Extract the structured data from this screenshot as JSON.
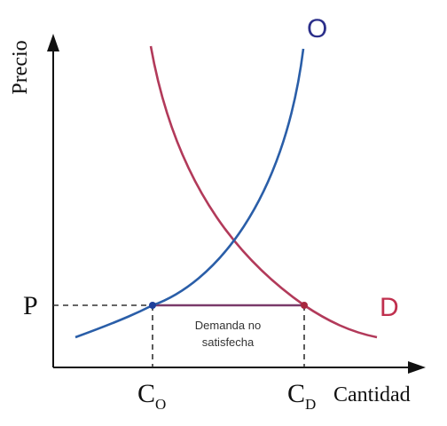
{
  "axes": {
    "y_label": "Precio",
    "x_label": "Cantidad"
  },
  "curves": {
    "supply": {
      "label": "O",
      "color": "#2a5ea8"
    },
    "demand": {
      "label": "D",
      "color": "#b23a5a"
    }
  },
  "markers": {
    "price_label": "P",
    "q_supply_main": "C",
    "q_supply_sub": "O",
    "q_demand_main": "C",
    "q_demand_sub": "D"
  },
  "annotation": {
    "line1": "Demanda no",
    "line2": "satisfecha"
  },
  "colors": {
    "axis": "#111111",
    "guide": "#333333",
    "supply_label": "#2b2f8a",
    "demand_label": "#c0304e"
  }
}
